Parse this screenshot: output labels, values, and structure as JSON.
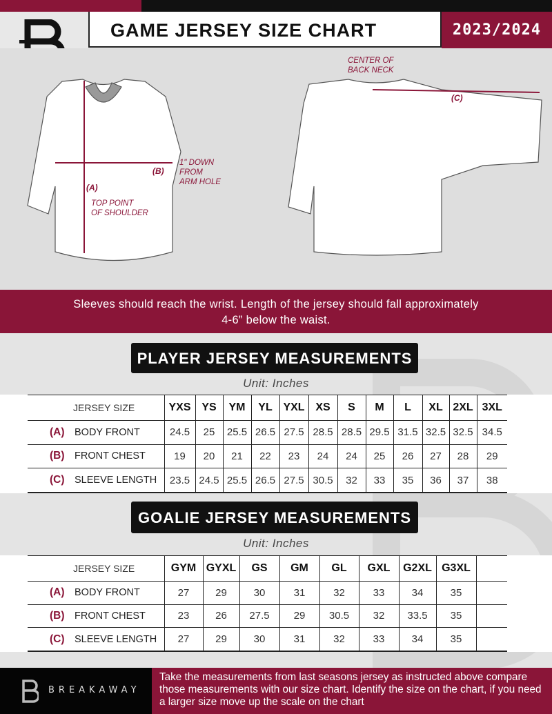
{
  "header": {
    "title": "GAME JERSEY SIZE CHART",
    "season": "2023/2024"
  },
  "colors": {
    "accent": "#8a1538",
    "dark": "#111111"
  },
  "illustration": {
    "front_labels": {
      "a": "(A)",
      "b": "(B)",
      "shoulder": "TOP POINT\nOF SHOULDER",
      "armhole": "1\" DOWN\nFROM\nARM HOLE"
    },
    "back_labels": {
      "c": "(C)",
      "neck": "CENTER OF\nBACK NECK"
    }
  },
  "note": "Sleeves should reach the wrist. Length of the jersey should fall approximately 4-6” below the waist.",
  "player": {
    "heading": "PLAYER JERSEY MEASUREMENTS",
    "unit": "Unit: Inches",
    "size_header": "JERSEY SIZE",
    "sizes": [
      "YXS",
      "YS",
      "YM",
      "YL",
      "YXL",
      "XS",
      "S",
      "M",
      "L",
      "XL",
      "2XL",
      "3XL"
    ],
    "rows": [
      {
        "letter": "(A)",
        "label": "BODY FRONT",
        "values": [
          "24.5",
          "25",
          "25.5",
          "26.5",
          "27.5",
          "28.5",
          "28.5",
          "29.5",
          "31.5",
          "32.5",
          "32.5",
          "34.5"
        ]
      },
      {
        "letter": "(B)",
        "label": "FRONT CHEST",
        "values": [
          "19",
          "20",
          "21",
          "22",
          "23",
          "24",
          "24",
          "25",
          "26",
          "27",
          "28",
          "29"
        ]
      },
      {
        "letter": "(C)",
        "label": "SLEEVE LENGTH",
        "values": [
          "23.5",
          "24.5",
          "25.5",
          "26.5",
          "27.5",
          "30.5",
          "32",
          "33",
          "35",
          "36",
          "37",
          "38"
        ]
      }
    ]
  },
  "goalie": {
    "heading": "GOALIE JERSEY MEASUREMENTS",
    "unit": "Unit: Inches",
    "size_header": "JERSEY SIZE",
    "sizes": [
      "GYM",
      "GYXL",
      "GS",
      "GM",
      "GL",
      "GXL",
      "G2XL",
      "G3XL",
      ""
    ],
    "rows": [
      {
        "letter": "(A)",
        "label": "BODY FRONT",
        "values": [
          "27",
          "29",
          "30",
          "31",
          "32",
          "33",
          "34",
          "35",
          ""
        ]
      },
      {
        "letter": "(B)",
        "label": "FRONT CHEST",
        "values": [
          "23",
          "26",
          "27.5",
          "29",
          "30.5",
          "32",
          "33.5",
          "35",
          ""
        ]
      },
      {
        "letter": "(C)",
        "label": "SLEEVE LENGTH",
        "values": [
          "27",
          "29",
          "30",
          "31",
          "32",
          "33",
          "34",
          "35",
          ""
        ]
      }
    ]
  },
  "footer": {
    "brand": "BREAKAWAY",
    "instructions": "Take the measurements from last seasons jersey as instructed above compare those measurements  with our size chart. Identify the size on the chart, if you need a larger size move up the scale on the chart"
  }
}
